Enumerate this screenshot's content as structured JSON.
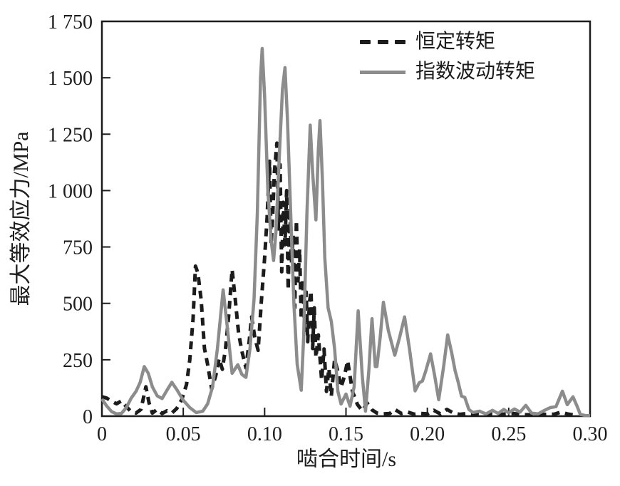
{
  "figure": {
    "background": "#ffffff"
  },
  "chart_data": {
    "type": "line",
    "title": "",
    "xlabel": "啮合时间/s",
    "ylabel": "最大等效应力/MPa",
    "xlim": [
      0,
      0.3
    ],
    "ylim": [
      0,
      1750
    ],
    "grid": false,
    "legend_position": "top-right-inside",
    "axis_color": "#1c1c1c",
    "xtick_values": [
      0,
      0.05,
      0.1,
      0.15,
      0.2,
      0.25,
      0.3
    ],
    "xtick_labels": [
      "0",
      "0.05",
      "0.10",
      "0.15",
      "0.20",
      "0.25",
      "0.30"
    ],
    "ytick_values": [
      0,
      250,
      500,
      750,
      1000,
      1250,
      1500,
      1750
    ],
    "ytick_labels": [
      "0",
      "250",
      "500",
      "750",
      "1 000",
      "1 250",
      "1 500",
      "1 750"
    ],
    "series": [
      {
        "name": "恒定转矩",
        "style": "dashed",
        "color": "#1c1c1c",
        "x": [
          0,
          0.003,
          0.006,
          0.009,
          0.012,
          0.015,
          0.018,
          0.021,
          0.024,
          0.027,
          0.029,
          0.031,
          0.034,
          0.037,
          0.04,
          0.043,
          0.046,
          0.049,
          0.052,
          0.054,
          0.056,
          0.0575,
          0.059,
          0.061,
          0.063,
          0.065,
          0.0675,
          0.07,
          0.072,
          0.074,
          0.076,
          0.078,
          0.08,
          0.082,
          0.084,
          0.086,
          0.0885,
          0.0905,
          0.092,
          0.094,
          0.096,
          0.098,
          0.1,
          0.1015,
          0.103,
          0.104,
          0.105,
          0.106,
          0.1075,
          0.1085,
          0.1095,
          0.1105,
          0.1115,
          0.1125,
          0.1135,
          0.1145,
          0.1155,
          0.1165,
          0.1175,
          0.1185,
          0.1195,
          0.1205,
          0.1215,
          0.1225,
          0.1235,
          0.1245,
          0.1255,
          0.1265,
          0.1275,
          0.1285,
          0.1295,
          0.1305,
          0.1315,
          0.133,
          0.135,
          0.1365,
          0.138,
          0.1395,
          0.141,
          0.143,
          0.145,
          0.147,
          0.149,
          0.151,
          0.154,
          0.157,
          0.16,
          0.163,
          0.166,
          0.169,
          0.173,
          0.177,
          0.18,
          0.184,
          0.188,
          0.192,
          0.196,
          0.2,
          0.204,
          0.208,
          0.212,
          0.216,
          0.22,
          0.224,
          0.228,
          0.233,
          0.238,
          0.243,
          0.248,
          0.253,
          0.258,
          0.263,
          0.268,
          0.273,
          0.278,
          0.282,
          0.286,
          0.29
        ],
        "y": [
          86,
          80,
          66,
          55,
          68,
          42,
          20,
          14,
          30,
          130,
          58,
          14,
          30,
          12,
          24,
          14,
          34,
          72,
          140,
          250,
          430,
          665,
          635,
          515,
          300,
          228,
          120,
          180,
          256,
          208,
          300,
          452,
          650,
          515,
          368,
          288,
          214,
          330,
          440,
          348,
          292,
          512,
          700,
          880,
          1130,
          760,
          900,
          1080,
          1210,
          830,
          1115,
          640,
          948,
          760,
          1000,
          560,
          925,
          680,
          800,
          480,
          868,
          600,
          740,
          430,
          608,
          380,
          550,
          330,
          500,
          555,
          300,
          480,
          260,
          360,
          160,
          298,
          110,
          212,
          88,
          252,
          198,
          128,
          176,
          246,
          110,
          52,
          24,
          58,
          28,
          14,
          10,
          12,
          30,
          12,
          18,
          9,
          12,
          10,
          26,
          10,
          30,
          14,
          8,
          12,
          10,
          7,
          10,
          6,
          10,
          12,
          7,
          6,
          9,
          8,
          9,
          18,
          10,
          5
        ]
      },
      {
        "name": "指数波动转矩",
        "style": "solid",
        "color": "#8c8c8c",
        "x": [
          0,
          0.003,
          0.006,
          0.009,
          0.012,
          0.015,
          0.018,
          0.021,
          0.0235,
          0.026,
          0.0285,
          0.031,
          0.034,
          0.037,
          0.04,
          0.043,
          0.046,
          0.05,
          0.054,
          0.058,
          0.062,
          0.065,
          0.068,
          0.071,
          0.0745,
          0.077,
          0.08,
          0.0835,
          0.086,
          0.0885,
          0.091,
          0.0935,
          0.0955,
          0.0975,
          0.0985,
          0.1,
          0.102,
          0.104,
          0.1055,
          0.107,
          0.109,
          0.111,
          0.1125,
          0.114,
          0.116,
          0.118,
          0.12,
          0.1225,
          0.124,
          0.126,
          0.128,
          0.1295,
          0.1315,
          0.133,
          0.134,
          0.1355,
          0.137,
          0.139,
          0.141,
          0.143,
          0.145,
          0.147,
          0.15,
          0.1525,
          0.155,
          0.1575,
          0.16,
          0.162,
          0.164,
          0.166,
          0.168,
          0.169,
          0.171,
          0.173,
          0.176,
          0.18,
          0.183,
          0.186,
          0.189,
          0.1925,
          0.195,
          0.197,
          0.199,
          0.202,
          0.2045,
          0.207,
          0.21,
          0.2125,
          0.215,
          0.217,
          0.219,
          0.221,
          0.223,
          0.2255,
          0.228,
          0.232,
          0.236,
          0.24,
          0.2435,
          0.247,
          0.25,
          0.2535,
          0.257,
          0.2605,
          0.264,
          0.268,
          0.272,
          0.2755,
          0.279,
          0.283,
          0.286,
          0.2895,
          0.292,
          0.294,
          0.297,
          0.3
        ],
        "y": [
          76,
          45,
          20,
          10,
          12,
          38,
          80,
          110,
          150,
          220,
          190,
          130,
          90,
          78,
          115,
          150,
          118,
          70,
          38,
          16,
          22,
          55,
          130,
          300,
          560,
          400,
          190,
          228,
          185,
          172,
          300,
          520,
          900,
          1500,
          1630,
          1420,
          1000,
          780,
          690,
          820,
          1150,
          1450,
          1545,
          1320,
          900,
          500,
          230,
          115,
          350,
          900,
          1290,
          1080,
          870,
          1180,
          1310,
          1050,
          700,
          480,
          420,
          300,
          110,
          54,
          98,
          44,
          130,
          467,
          180,
          22,
          200,
          432,
          220,
          220,
          350,
          505,
          380,
          270,
          350,
          440,
          300,
          112,
          148,
          156,
          200,
          276,
          180,
          73,
          220,
          360,
          280,
          203,
          150,
          89,
          83,
          30,
          16,
          22,
          10,
          26,
          12,
          30,
          15,
          32,
          18,
          48,
          14,
          10,
          26,
          38,
          42,
          111,
          51,
          86,
          45,
          8,
          3,
          2
        ]
      }
    ]
  }
}
